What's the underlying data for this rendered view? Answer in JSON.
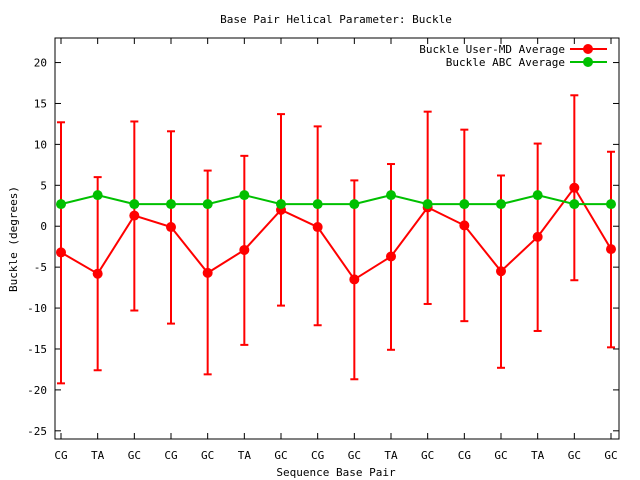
{
  "chart_data": {
    "type": "line",
    "title": "Base Pair Helical Parameter: Buckle",
    "xlabel": "Sequence Base Pair",
    "ylabel": "Buckle (degrees)",
    "categories": [
      "CG",
      "TA",
      "GC",
      "CG",
      "GC",
      "TA",
      "GC",
      "CG",
      "GC",
      "TA",
      "GC",
      "CG",
      "GC",
      "TA",
      "GC",
      "GC"
    ],
    "ylim": [
      -26,
      23
    ],
    "yticks": [
      20,
      15,
      10,
      5,
      0,
      -5,
      -10,
      -15,
      -20,
      -25
    ],
    "grid": false,
    "legend_position": "top-right",
    "series": [
      {
        "name": "Buckle User-MD Average",
        "color": "#ff0000",
        "values": [
          -3.2,
          -5.8,
          1.3,
          -0.1,
          -5.7,
          -2.9,
          2.0,
          -0.1,
          -6.5,
          -3.7,
          2.3,
          0.1,
          -5.5,
          -1.3,
          4.7,
          -2.8
        ],
        "error_low": [
          -19.2,
          -17.6,
          -10.3,
          -11.9,
          -18.1,
          -14.5,
          -9.7,
          -12.1,
          -18.7,
          -15.1,
          -9.5,
          -11.6,
          -17.3,
          -12.8,
          -6.6,
          -14.8
        ],
        "error_high": [
          12.7,
          6.0,
          12.8,
          11.6,
          6.8,
          8.6,
          13.7,
          12.2,
          5.6,
          7.6,
          14.0,
          11.8,
          6.2,
          10.1,
          16.0,
          9.1
        ]
      },
      {
        "name": "Buckle ABC Average",
        "color": "#00c000",
        "values": [
          2.7,
          3.8,
          2.7,
          2.7,
          2.7,
          3.8,
          2.7,
          2.7,
          2.7,
          3.8,
          2.7,
          2.7,
          2.7,
          3.8,
          2.7,
          2.7
        ]
      }
    ]
  }
}
